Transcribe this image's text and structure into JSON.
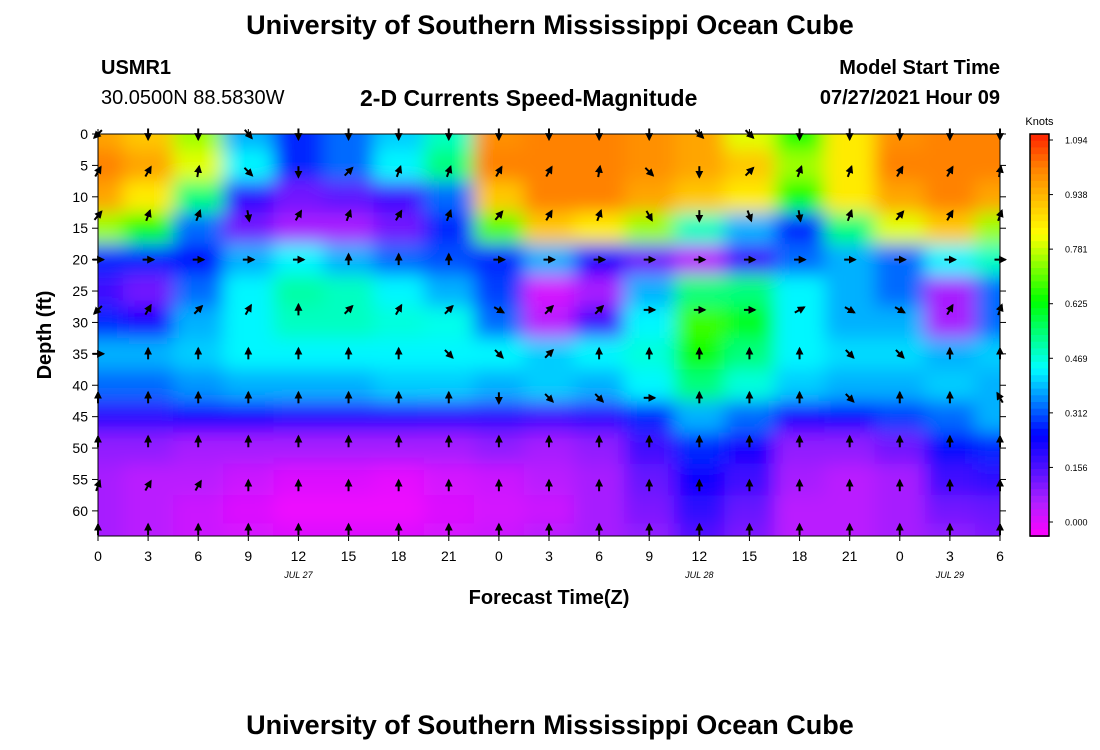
{
  "header": {
    "title": "University of Southern Mississippi Ocean Cube",
    "station_name": "USMR1",
    "station_coords": "30.0500N  88.5830W",
    "plot_title": "2-D Currents Speed-Magnitude",
    "model_label": "Model Start Time",
    "model_time": "07/27/2021 Hour 09"
  },
  "footer": {
    "title": "University of Southern Mississippi Ocean Cube"
  },
  "colors": {
    "palette": [
      "#ff00ff",
      "#b020ff",
      "#5010ff",
      "#0000ff",
      "#0080ff",
      "#00ffff",
      "#00ff80",
      "#00ff00",
      "#80ff00",
      "#ffff00",
      "#ffc000",
      "#ff8000",
      "#ff2000"
    ],
    "arrow": "#000000"
  },
  "chart_data": {
    "type": "heatmap",
    "title": "2-D Currents Speed-Magnitude",
    "xlabel": "Forecast Time(Z)",
    "ylabel": "Depth (ft)",
    "x_hours": [
      0,
      3,
      6,
      9,
      12,
      15,
      18,
      21,
      24,
      27,
      30,
      33,
      36,
      39,
      42,
      45,
      48,
      51,
      54
    ],
    "x_tick_labels": [
      "0",
      "3",
      "6",
      "9",
      "12",
      "15",
      "18",
      "21",
      "0",
      "3",
      "6",
      "9",
      "12",
      "15",
      "18",
      "21",
      "0",
      "3",
      "6"
    ],
    "date_markers": [
      {
        "hour": 12,
        "label": "JUL 27"
      },
      {
        "hour": 36,
        "label": "JUL 28"
      },
      {
        "hour": 51,
        "label": "JUL 29"
      }
    ],
    "y_ticks": [
      0,
      5,
      10,
      15,
      20,
      25,
      30,
      35,
      40,
      45,
      50,
      55,
      60
    ],
    "ylim": [
      0,
      64
    ],
    "depths": [
      0,
      5,
      10,
      15,
      20,
      25,
      30,
      35,
      40,
      45,
      50,
      55,
      60,
      64
    ],
    "speed_knots": [
      [
        0.95,
        0.9,
        0.75,
        0.4,
        0.3,
        0.35,
        0.42,
        0.5,
        0.98,
        1.0,
        1.0,
        0.98,
        0.95,
        0.8,
        0.65,
        0.85,
        0.98,
        1.0,
        1.0
      ],
      [
        1.0,
        0.95,
        0.8,
        0.45,
        0.3,
        0.35,
        0.45,
        0.55,
        1.0,
        1.0,
        1.0,
        0.98,
        0.95,
        0.9,
        0.75,
        0.85,
        1.0,
        1.0,
        1.0
      ],
      [
        0.95,
        0.85,
        0.55,
        0.22,
        0.15,
        0.17,
        0.2,
        0.35,
        0.9,
        1.0,
        1.0,
        0.95,
        0.9,
        0.85,
        0.65,
        0.85,
        0.95,
        1.0,
        0.95
      ],
      [
        0.75,
        0.65,
        0.35,
        0.15,
        0.1,
        0.1,
        0.15,
        0.3,
        0.7,
        0.9,
        0.85,
        0.75,
        0.5,
        0.4,
        0.3,
        0.55,
        0.8,
        0.9,
        0.75
      ],
      [
        0.3,
        0.3,
        0.28,
        0.4,
        0.45,
        0.4,
        0.35,
        0.33,
        0.3,
        0.4,
        0.25,
        0.15,
        0.08,
        0.2,
        0.35,
        0.4,
        0.35,
        0.45,
        0.5
      ],
      [
        0.2,
        0.15,
        0.35,
        0.45,
        0.52,
        0.5,
        0.45,
        0.4,
        0.32,
        0.05,
        0.1,
        0.4,
        0.55,
        0.55,
        0.45,
        0.4,
        0.35,
        0.1,
        0.35
      ],
      [
        0.3,
        0.25,
        0.4,
        0.45,
        0.5,
        0.5,
        0.48,
        0.47,
        0.35,
        0.08,
        0.2,
        0.45,
        0.68,
        0.62,
        0.45,
        0.4,
        0.4,
        0.1,
        0.35
      ],
      [
        0.4,
        0.4,
        0.42,
        0.45,
        0.45,
        0.45,
        0.45,
        0.45,
        0.45,
        0.42,
        0.45,
        0.48,
        0.65,
        0.55,
        0.45,
        0.43,
        0.43,
        0.4,
        0.42
      ],
      [
        0.35,
        0.35,
        0.38,
        0.4,
        0.4,
        0.4,
        0.42,
        0.42,
        0.4,
        0.42,
        0.4,
        0.45,
        0.55,
        0.48,
        0.42,
        0.4,
        0.4,
        0.42,
        0.4
      ],
      [
        0.22,
        0.22,
        0.25,
        0.25,
        0.23,
        0.23,
        0.23,
        0.22,
        0.22,
        0.2,
        0.22,
        0.3,
        0.4,
        0.35,
        0.25,
        0.28,
        0.32,
        0.35,
        0.4
      ],
      [
        0.12,
        0.12,
        0.1,
        0.1,
        0.1,
        0.1,
        0.1,
        0.1,
        0.12,
        0.1,
        0.12,
        0.2,
        0.3,
        0.25,
        0.12,
        0.12,
        0.15,
        0.28,
        0.3
      ],
      [
        0.1,
        0.08,
        0.08,
        0.06,
        0.04,
        0.04,
        0.03,
        0.05,
        0.06,
        0.08,
        0.1,
        0.16,
        0.26,
        0.2,
        0.1,
        0.08,
        0.1,
        0.2,
        0.22
      ],
      [
        0.1,
        0.08,
        0.06,
        0.04,
        0.02,
        0.02,
        0.02,
        0.04,
        0.05,
        0.06,
        0.1,
        0.14,
        0.22,
        0.16,
        0.08,
        0.08,
        0.1,
        0.15,
        0.16
      ],
      [
        0.1,
        0.08,
        0.06,
        0.05,
        0.04,
        0.04,
        0.04,
        0.05,
        0.06,
        0.08,
        0.1,
        0.12,
        0.18,
        0.14,
        0.08,
        0.08,
        0.1,
        0.12,
        0.14
      ]
    ],
    "arrow_depths": [
      0,
      6,
      13,
      20,
      28,
      35,
      42,
      49,
      56,
      63
    ],
    "arrow_directions_deg": [
      [
        225,
        180,
        180,
        140,
        180,
        180,
        180,
        180,
        180,
        180,
        180,
        180,
        135,
        135,
        180,
        180,
        180,
        180,
        180
      ],
      [
        30,
        30,
        10,
        135,
        180,
        45,
        20,
        20,
        30,
        30,
        10,
        135,
        180,
        45,
        20,
        20,
        30,
        30,
        10
      ],
      [
        40,
        20,
        20,
        170,
        30,
        20,
        30,
        20,
        40,
        30,
        20,
        150,
        180,
        160,
        170,
        20,
        40,
        30,
        20
      ],
      [
        90,
        90,
        90,
        90,
        90,
        0,
        0,
        0,
        90,
        90,
        90,
        90,
        90,
        90,
        90,
        90,
        90,
        90,
        90
      ],
      [
        225,
        30,
        45,
        30,
        0,
        45,
        30,
        45,
        120,
        45,
        45,
        90,
        90,
        90,
        60,
        120,
        120,
        30,
        20
      ],
      [
        90,
        0,
        0,
        0,
        0,
        0,
        0,
        135,
        135,
        45,
        0,
        0,
        0,
        0,
        0,
        135,
        135,
        0,
        0
      ],
      [
        0,
        0,
        0,
        0,
        0,
        0,
        0,
        0,
        180,
        135,
        135,
        90,
        0,
        0,
        0,
        135,
        0,
        0,
        330
      ],
      [
        0,
        0,
        0,
        0,
        0,
        0,
        0,
        0,
        0,
        0,
        0,
        0,
        0,
        0,
        0,
        0,
        0,
        0,
        0
      ],
      [
        20,
        30,
        30,
        0,
        0,
        0,
        0,
        0,
        0,
        0,
        0,
        0,
        0,
        0,
        0,
        0,
        0,
        0,
        0
      ],
      [
        0,
        0,
        0,
        0,
        0,
        0,
        0,
        0,
        0,
        0,
        0,
        0,
        0,
        0,
        0,
        0,
        0,
        0,
        0
      ]
    ],
    "colorbar": {
      "label": "Knots",
      "ticks": [
        "1.094",
        "0.938",
        "0.781",
        "0.625",
        "0.469",
        "0.312",
        "0.156",
        "0.000"
      ],
      "range": [
        0.0,
        1.094
      ]
    }
  }
}
